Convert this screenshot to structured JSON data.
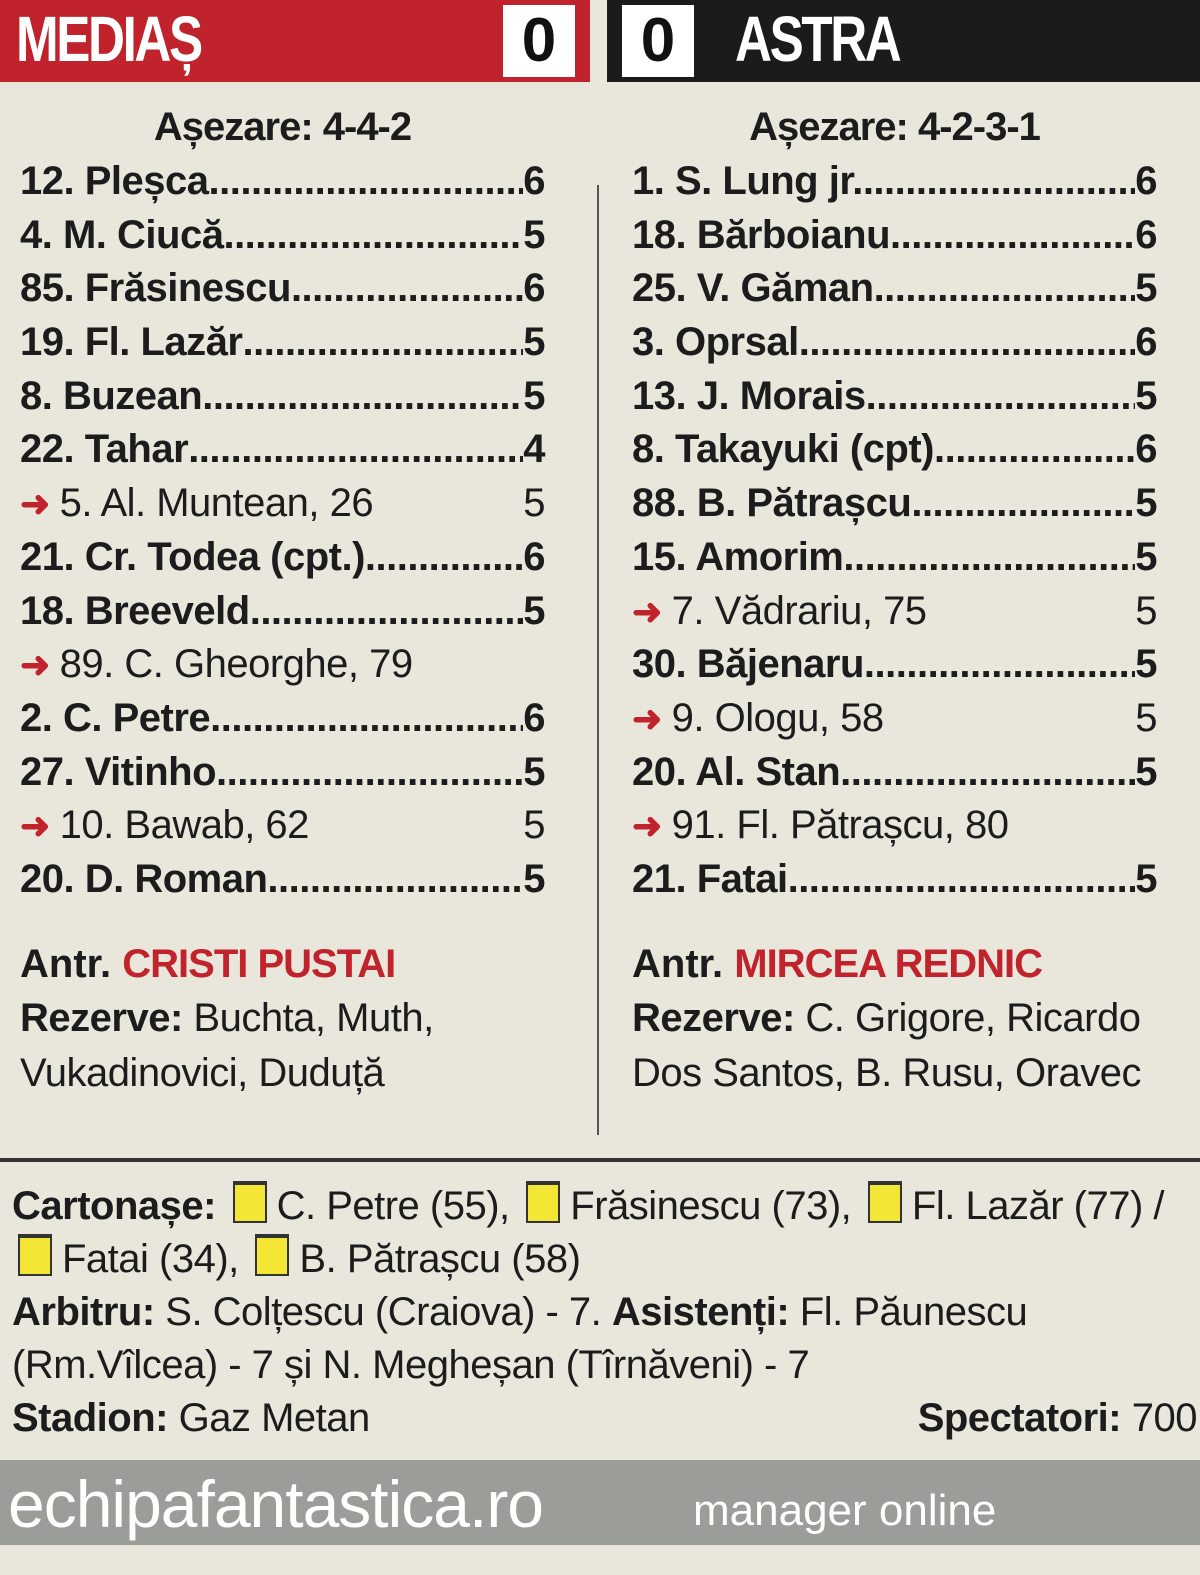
{
  "home": {
    "team": "MEDIAȘ",
    "score": "0",
    "color": "#c0232b",
    "formation": "Așezare: 4-4-2",
    "players": [
      {
        "name": "12. Pleșca",
        "rating": "6",
        "sub": false
      },
      {
        "name": "4. M. Ciucă",
        "rating": "5",
        "sub": false
      },
      {
        "name": "85. Frăsinescu",
        "rating": "6",
        "sub": false
      },
      {
        "name": "19. Fl. Lazăr",
        "rating": "5",
        "sub": false
      },
      {
        "name": "8. Buzean",
        "rating": "5",
        "sub": false
      },
      {
        "name": "22. Tahar ",
        "rating": "4",
        "sub": false
      },
      {
        "name": "5. Al. Muntean, 26",
        "rating": "5",
        "sub": true
      },
      {
        "name": "21. Cr. Todea (cpt.) ",
        "rating": "6",
        "sub": false
      },
      {
        "name": "18. Breeveld ",
        "rating": "5",
        "sub": false
      },
      {
        "name": "89. C. Gheorghe, 79",
        "rating": "",
        "sub": true
      },
      {
        "name": "2. C. Petre ",
        "rating": "6",
        "sub": false
      },
      {
        "name": "27. Vitinho ",
        "rating": "5",
        "sub": false
      },
      {
        "name": "10. Bawab, 62",
        "rating": "5",
        "sub": true
      },
      {
        "name": "20. D. Roman",
        "rating": "5",
        "sub": false
      }
    ],
    "coach_label": "Antr.",
    "coach": "CRISTI PUSTAI",
    "subs_label": "Rezerve:",
    "subs": "Buchta, Muth, Vukadinovici, Duduță"
  },
  "away": {
    "team": "ASTRA",
    "score": "0",
    "color": "#1b1b1b",
    "formation": "Așezare: 4-2-3-1",
    "players": [
      {
        "name": "1. S. Lung jr. ",
        "rating": "6",
        "sub": false
      },
      {
        "name": "18. Bărboianu ",
        "rating": "6",
        "sub": false
      },
      {
        "name": "25. V. Găman ",
        "rating": "5",
        "sub": false
      },
      {
        "name": "3. Oprsal",
        "rating": "6",
        "sub": false
      },
      {
        "name": "13. J. Morais",
        "rating": "5",
        "sub": false
      },
      {
        "name": "8. Takayuki (cpt)",
        "rating": "6",
        "sub": false
      },
      {
        "name": "88. B. Pătrașcu ",
        "rating": "5",
        "sub": false
      },
      {
        "name": "15. Amorim ",
        "rating": "5",
        "sub": false
      },
      {
        "name": "7. Vădrariu, 75",
        "rating": "5",
        "sub": true
      },
      {
        "name": "30. Băjenaru",
        "rating": "5",
        "sub": false
      },
      {
        "name": "9. Ologu, 58",
        "rating": "5",
        "sub": true
      },
      {
        "name": "20. Al. Stan",
        "rating": "5",
        "sub": false
      },
      {
        "name": "91. Fl. Pătrașcu, 80",
        "rating": "",
        "sub": true
      },
      {
        "name": "21. Fatai ",
        "rating": "5",
        "sub": false
      }
    ],
    "coach_label": "Antr.",
    "coach": "MIRCEA REDNIC",
    "subs_label": "Rezerve:",
    "subs": "C. Grigore, Ricardo Dos Santos, B. Rusu, Oravec"
  },
  "cards": {
    "label": "Cartonașe:",
    "color": "#f3e533",
    "home": [
      "C. Petre (55)",
      "Frăsinescu (73)",
      "Fl. Lazăr (77)"
    ],
    "away": [
      "Fatai (34)",
      "B. Pătrașcu (58)"
    ]
  },
  "referee": {
    "label": "Arbitru:",
    "text": "S. Colțescu (Craiova) - 7.",
    "assist_label": "Asistenți:",
    "assist_text": "Fl. Păunescu (Rm.Vîlcea) - 7 și  N. Megheșan (Tîrnăveni) - 7"
  },
  "stadium": {
    "label": "Stadion:",
    "value": "Gaz Metan",
    "spect_label": "Spectatori:",
    "spect_value": "700"
  },
  "footer": {
    "site": "echipafantastica.ro",
    "tagline": "manager online"
  }
}
